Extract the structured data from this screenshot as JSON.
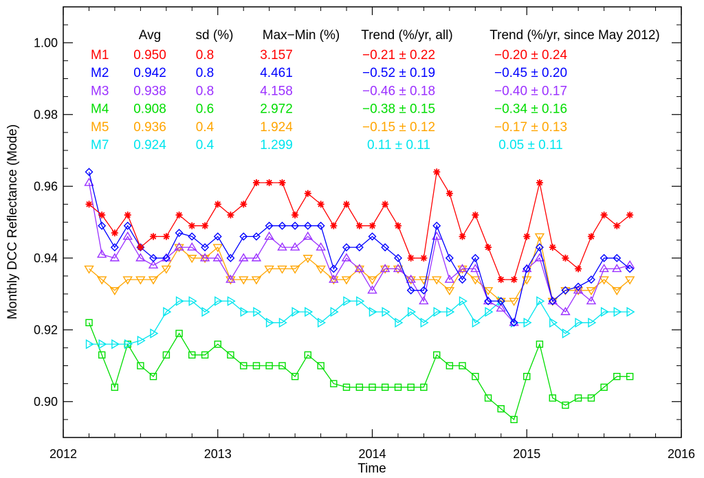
{
  "chart_data": {
    "type": "line",
    "title": "",
    "xlabel": "Time",
    "ylabel": "Monthly DCC Reflectance (Mode)",
    "xlim": [
      2012.0,
      2016.0
    ],
    "ylim": [
      0.89,
      1.01
    ],
    "x_ticks": [
      2012,
      2013,
      2014,
      2015,
      2016
    ],
    "x_tick_labels": [
      "2012",
      "2013",
      "2014",
      "2015",
      "2016"
    ],
    "y_ticks": [
      0.9,
      0.92,
      0.94,
      0.96,
      0.98,
      1.0
    ],
    "y_tick_labels": [
      "0.90",
      "0.92",
      "0.94",
      "0.96",
      "0.98",
      "1.00"
    ],
    "grid": false,
    "legend_position": "top",
    "x": [
      2012.167,
      2012.25,
      2012.333,
      2012.417,
      2012.5,
      2012.583,
      2012.667,
      2012.75,
      2012.833,
      2012.917,
      2013.0,
      2013.083,
      2013.167,
      2013.25,
      2013.333,
      2013.417,
      2013.5,
      2013.583,
      2013.667,
      2013.75,
      2013.833,
      2013.917,
      2014.0,
      2014.083,
      2014.167,
      2014.25,
      2014.333,
      2014.417,
      2014.5,
      2014.583,
      2014.667,
      2014.75,
      2014.833,
      2014.917,
      2015.0,
      2015.083,
      2015.167,
      2015.25,
      2015.333,
      2015.417,
      2015.5,
      2015.583,
      2015.667
    ],
    "table_headers": [
      "Avg",
      "sd (%)",
      "Max−Min (%)",
      "Trend (%/yr, all)",
      "Trend (%/yr, since May 2012)"
    ],
    "series": [
      {
        "name": "M1",
        "color": "#ff0000",
        "marker": "asterisk",
        "avg": "0.950",
        "sd": "0.8",
        "maxmin": "3.157",
        "trend_all": "−0.21 ± 0.22",
        "trend_since": "−0.20 ± 0.24",
        "values": [
          0.955,
          0.952,
          0.947,
          0.952,
          0.943,
          0.946,
          0.946,
          0.952,
          0.949,
          0.949,
          0.955,
          0.952,
          0.955,
          0.961,
          0.961,
          0.961,
          0.952,
          0.958,
          0.955,
          0.949,
          0.955,
          0.949,
          0.949,
          0.955,
          0.949,
          0.94,
          0.94,
          0.964,
          0.958,
          0.946,
          0.952,
          0.943,
          0.934,
          0.934,
          0.946,
          0.961,
          0.943,
          0.94,
          0.937,
          0.946,
          0.952,
          0.949,
          0.952
        ]
      },
      {
        "name": "M2",
        "color": "#0000ff",
        "marker": "diamond",
        "avg": "0.942",
        "sd": "0.8",
        "maxmin": "4.461",
        "trend_all": "−0.52 ± 0.19",
        "trend_since": "−0.45 ± 0.20",
        "values": [
          0.964,
          0.949,
          0.943,
          0.949,
          0.943,
          0.94,
          0.94,
          0.947,
          0.946,
          0.943,
          0.946,
          0.94,
          0.946,
          0.946,
          0.949,
          0.949,
          0.949,
          0.949,
          0.949,
          0.937,
          0.943,
          0.943,
          0.946,
          0.943,
          0.94,
          0.931,
          0.931,
          0.949,
          0.94,
          0.934,
          0.94,
          0.928,
          0.928,
          0.922,
          0.937,
          0.943,
          0.928,
          0.931,
          0.932,
          0.934,
          0.94,
          0.94,
          0.937
        ]
      },
      {
        "name": "M3",
        "color": "#9b30ff",
        "marker": "triangle-up",
        "avg": "0.938",
        "sd": "0.8",
        "maxmin": "4.158",
        "trend_all": "−0.46 ± 0.18",
        "trend_since": "−0.40 ± 0.17",
        "values": [
          0.961,
          0.941,
          0.94,
          0.946,
          0.94,
          0.938,
          0.94,
          0.943,
          0.943,
          0.94,
          0.94,
          0.934,
          0.94,
          0.94,
          0.946,
          0.943,
          0.943,
          0.946,
          0.943,
          0.934,
          0.94,
          0.937,
          0.931,
          0.937,
          0.937,
          0.934,
          0.928,
          0.946,
          0.934,
          0.937,
          0.937,
          0.928,
          0.926,
          0.922,
          0.937,
          0.94,
          0.928,
          0.925,
          0.931,
          0.928,
          0.937,
          0.937,
          0.938
        ]
      },
      {
        "name": "M4",
        "color": "#00dd00",
        "marker": "square",
        "avg": "0.908",
        "sd": "0.6",
        "maxmin": "2.972",
        "trend_all": "−0.38 ± 0.15",
        "trend_since": "−0.34 ± 0.16",
        "values": [
          0.922,
          0.913,
          0.904,
          0.916,
          0.91,
          0.907,
          0.913,
          0.919,
          0.913,
          0.913,
          0.916,
          0.913,
          0.91,
          0.91,
          0.91,
          0.91,
          0.907,
          0.913,
          0.91,
          0.905,
          0.904,
          0.904,
          0.904,
          0.904,
          0.904,
          0.904,
          0.904,
          0.913,
          0.91,
          0.91,
          0.907,
          0.901,
          0.898,
          0.895,
          0.907,
          0.916,
          0.901,
          0.899,
          0.901,
          0.901,
          0.904,
          0.907,
          0.907
        ]
      },
      {
        "name": "M5",
        "color": "#ffa500",
        "marker": "triangle-down",
        "avg": "0.936",
        "sd": "0.4",
        "maxmin": "1.924",
        "trend_all": "−0.15 ± 0.12",
        "trend_since": "−0.17 ± 0.13",
        "values": [
          0.937,
          0.934,
          0.931,
          0.934,
          0.934,
          0.934,
          0.937,
          0.943,
          0.94,
          0.94,
          0.943,
          0.934,
          0.934,
          0.934,
          0.937,
          0.937,
          0.937,
          0.94,
          0.937,
          0.934,
          0.934,
          0.937,
          0.934,
          0.937,
          0.937,
          0.934,
          0.934,
          0.934,
          0.931,
          0.937,
          0.934,
          0.931,
          0.928,
          0.928,
          0.934,
          0.946,
          0.928,
          0.931,
          0.931,
          0.931,
          0.934,
          0.931,
          0.934
        ]
      },
      {
        "name": "M7",
        "color": "#00e5ee",
        "marker": "triangle-right",
        "avg": "0.924",
        "sd": "0.4",
        "maxmin": "1.299",
        "trend_all": "0.11 ± 0.11",
        "trend_since": "0.05 ± 0.11",
        "values": [
          0.916,
          0.916,
          0.916,
          0.916,
          0.917,
          0.919,
          0.925,
          0.928,
          0.928,
          0.925,
          0.928,
          0.928,
          0.925,
          0.925,
          0.922,
          0.922,
          0.925,
          0.925,
          0.922,
          0.925,
          0.928,
          0.928,
          0.925,
          0.925,
          0.922,
          0.925,
          0.922,
          0.925,
          0.925,
          0.928,
          0.922,
          0.925,
          0.928,
          0.922,
          0.922,
          0.928,
          0.922,
          0.919,
          0.922,
          0.922,
          0.925,
          0.925,
          0.925
        ]
      }
    ]
  }
}
